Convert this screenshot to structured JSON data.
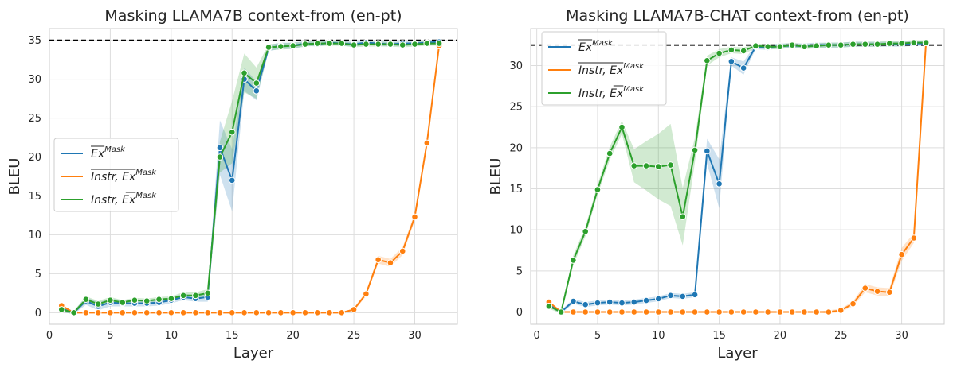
{
  "colors": {
    "blue": "#1f77b4",
    "orange": "#ff7f0e",
    "green": "#2ca02c",
    "grid": "#dddddd",
    "reference": "#000000"
  },
  "chart_data": [
    {
      "type": "line",
      "title": "Masking LLAMA7B context-from (en-pt)",
      "xlabel": "Layer",
      "ylabel": "BLEU",
      "xlim": [
        0,
        33.5
      ],
      "ylim": [
        -1.5,
        36.5
      ],
      "xticks": [
        "0",
        "5",
        "10",
        "15",
        "20",
        "25",
        "30"
      ],
      "yticks": [
        "0",
        "5",
        "10",
        "15",
        "20",
        "25",
        "30",
        "35"
      ],
      "grid": true,
      "legend_position": "center-left",
      "reference_line": 35,
      "x": [
        1,
        2,
        3,
        4,
        5,
        6,
        7,
        8,
        9,
        10,
        11,
        12,
        13,
        14,
        15,
        16,
        17,
        18,
        19,
        20,
        21,
        22,
        23,
        24,
        25,
        26,
        27,
        28,
        29,
        30,
        31,
        32
      ],
      "series": [
        {
          "name": "Ex Mask (overline Ex)",
          "legend_main": "Ex",
          "legend_sup": "Mask",
          "legend_overline": "full",
          "color": "blue",
          "values": [
            0.5,
            0.0,
            1.5,
            0.8,
            1.3,
            1.2,
            1.2,
            1.2,
            1.3,
            1.6,
            2.0,
            1.8,
            2.0,
            21.2,
            17.0,
            30.0,
            28.5,
            34.0,
            34.3,
            34.3,
            34.6,
            34.5,
            34.7,
            34.6,
            34.5,
            34.7,
            34.6,
            34.5,
            34.6,
            34.6,
            34.7,
            34.8
          ],
          "band": [
            0.4,
            0.2,
            0.5,
            0.5,
            0.5,
            0.4,
            0.4,
            0.4,
            0.4,
            0.4,
            0.4,
            0.4,
            0.6,
            3.5,
            4.0,
            1.5,
            1.2,
            0.4,
            0.4,
            0.4,
            0.3,
            0.3,
            0.3,
            0.3,
            0.3,
            0.3,
            0.3,
            0.3,
            0.3,
            0.3,
            0.3,
            0.3
          ]
        },
        {
          "name": "Instr, Ex Mask (overline Instr, Ex)",
          "legend_main": "Instr, Ex",
          "legend_sup": "Mask",
          "legend_overline": "full",
          "color": "orange",
          "values": [
            0.9,
            0.0,
            0.0,
            0.0,
            0.0,
            0.0,
            0.0,
            0.0,
            0.0,
            0.0,
            0.0,
            0.0,
            0.0,
            0.0,
            0.0,
            0.0,
            0.0,
            0.0,
            0.0,
            0.0,
            0.0,
            0.0,
            0.0,
            0.0,
            0.4,
            2.4,
            6.8,
            6.4,
            7.9,
            12.3,
            21.8,
            34.3
          ],
          "band": [
            0.2,
            0,
            0,
            0,
            0,
            0,
            0,
            0,
            0,
            0,
            0,
            0,
            0,
            0,
            0,
            0,
            0,
            0,
            0,
            0,
            0,
            0,
            0,
            0,
            0.2,
            0.3,
            0.5,
            0.5,
            0.5,
            0.5,
            0.3,
            0.3
          ]
        },
        {
          "name": "Instr, Ex Mask (overline Ex)",
          "legend_main": "Instr, Ex",
          "legend_sup": "Mask",
          "legend_overline": "ex",
          "color": "green",
          "values": [
            0.4,
            0.0,
            1.7,
            1.1,
            1.6,
            1.3,
            1.6,
            1.5,
            1.7,
            1.8,
            2.2,
            2.2,
            2.5,
            20.0,
            23.2,
            30.8,
            29.5,
            34.1,
            34.2,
            34.3,
            34.5,
            34.6,
            34.6,
            34.6,
            34.4,
            34.5,
            34.5,
            34.5,
            34.4,
            34.5,
            34.6,
            34.6
          ],
          "band": [
            0.3,
            0.2,
            0.4,
            0.4,
            0.4,
            0.3,
            0.3,
            0.3,
            0.3,
            0.3,
            0.4,
            0.4,
            0.5,
            2.0,
            4.0,
            2.5,
            2.0,
            0.4,
            0.4,
            0.4,
            0.3,
            0.3,
            0.3,
            0.3,
            0.3,
            0.3,
            0.3,
            0.3,
            0.3,
            0.3,
            0.3,
            0.3
          ]
        }
      ]
    },
    {
      "type": "line",
      "title": "Masking LLAMA7B-CHAT context-from (en-pt)",
      "xlabel": "Layer",
      "ylabel": "BLEU",
      "xlim": [
        -0.5,
        33.5
      ],
      "ylim": [
        -1.5,
        34.5
      ],
      "xticks": [
        "0",
        "5",
        "10",
        "15",
        "20",
        "25",
        "30"
      ],
      "yticks": [
        "0",
        "5",
        "10",
        "15",
        "20",
        "25",
        "30"
      ],
      "grid": true,
      "legend_position": "top-left",
      "reference_line": 32.5,
      "x": [
        1,
        2,
        3,
        4,
        5,
        6,
        7,
        8,
        9,
        10,
        11,
        12,
        13,
        14,
        15,
        16,
        17,
        18,
        19,
        20,
        21,
        22,
        23,
        24,
        25,
        26,
        27,
        28,
        29,
        30,
        31,
        32
      ],
      "series": [
        {
          "name": "Ex Mask (overline Ex)",
          "legend_main": "Ex",
          "legend_sup": "Mask",
          "legend_overline": "full",
          "color": "blue",
          "values": [
            0.9,
            0.0,
            1.3,
            0.9,
            1.1,
            1.2,
            1.1,
            1.2,
            1.4,
            1.6,
            2.0,
            1.9,
            2.1,
            19.6,
            15.6,
            30.5,
            29.7,
            32.3,
            32.2,
            32.4,
            32.4,
            32.4,
            32.5,
            32.5,
            32.5,
            32.6,
            32.6,
            32.6,
            32.6,
            32.6,
            32.7,
            32.7
          ],
          "band": [
            0.3,
            0.2,
            0.3,
            0.3,
            0.3,
            0.3,
            0.3,
            0.3,
            0.3,
            0.3,
            0.3,
            0.3,
            0.3,
            1.5,
            3.0,
            0.5,
            0.8,
            0.3,
            0.3,
            0.3,
            0.3,
            0.3,
            0.3,
            0.3,
            0.3,
            0.3,
            0.3,
            0.3,
            0.3,
            0.3,
            0.3,
            0.3
          ]
        },
        {
          "name": "Instr, Ex Mask (overline Instr, Ex)",
          "legend_main": "Instr, Ex",
          "legend_sup": "Mask",
          "legend_overline": "full",
          "color": "orange",
          "values": [
            1.2,
            0.0,
            0.0,
            0.0,
            0.0,
            0.0,
            0.0,
            0.0,
            0.0,
            0.0,
            0.0,
            0.0,
            0.0,
            0.0,
            0.0,
            0.0,
            0.0,
            0.0,
            0.0,
            0.0,
            0.0,
            0.0,
            0.0,
            0.0,
            0.2,
            1.0,
            2.9,
            2.5,
            2.4,
            7.0,
            9.0,
            32.8
          ],
          "band": [
            0.2,
            0,
            0,
            0,
            0,
            0,
            0,
            0,
            0,
            0,
            0,
            0,
            0,
            0,
            0,
            0,
            0,
            0,
            0,
            0,
            0,
            0,
            0,
            0.2,
            0.2,
            0.3,
            0.5,
            0.5,
            0.5,
            0.8,
            0.6,
            0.3
          ]
        },
        {
          "name": "Instr, Ex Mask (overline Ex)",
          "legend_main": "Instr, Ex",
          "legend_sup": "Mask",
          "legend_overline": "ex",
          "color": "green",
          "values": [
            0.7,
            0.0,
            6.3,
            9.8,
            14.9,
            19.3,
            22.5,
            17.8,
            17.8,
            17.7,
            17.9,
            11.6,
            19.7,
            30.6,
            31.5,
            31.9,
            31.8,
            32.4,
            32.3,
            32.3,
            32.5,
            32.3,
            32.4,
            32.5,
            32.5,
            32.6,
            32.6,
            32.6,
            32.7,
            32.7,
            32.8,
            32.8
          ],
          "band": [
            0.3,
            0.2,
            0.6,
            0.6,
            0.6,
            0.8,
            0.8,
            2.0,
            3.0,
            4.0,
            5.0,
            3.5,
            1.5,
            0.6,
            0.5,
            0.4,
            0.4,
            0.3,
            0.3,
            0.3,
            0.3,
            0.3,
            0.3,
            0.3,
            0.3,
            0.3,
            0.3,
            0.3,
            0.3,
            0.3,
            0.3,
            0.3
          ]
        }
      ]
    }
  ]
}
